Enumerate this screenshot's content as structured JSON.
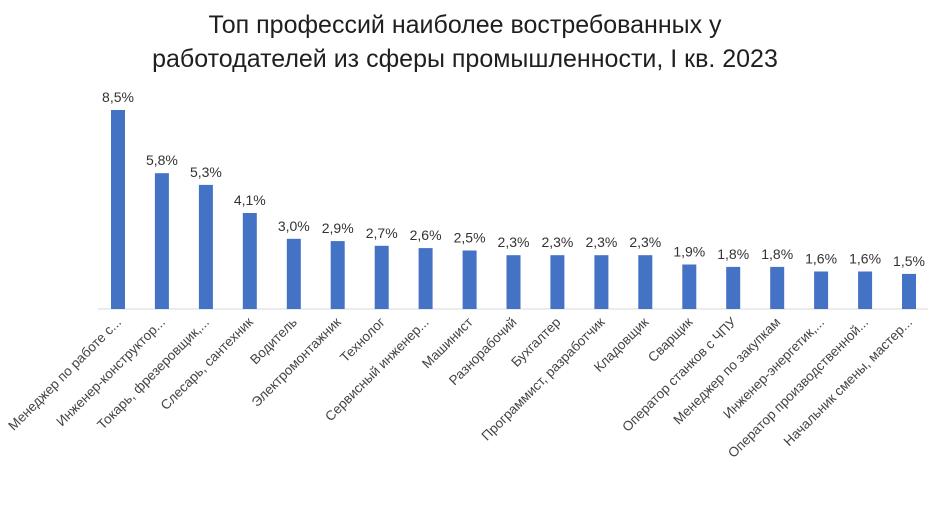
{
  "title_line1": "Топ профессий наиболее востребованных у",
  "title_line2": "работодателей из сферы промышленности, I кв. 2023",
  "chart_data": {
    "type": "bar",
    "title": "Топ профессий наиболее востребованных у работодателей из сферы промышленности, I кв. 2023",
    "xlabel": "",
    "ylabel": "",
    "ylim": [
      0,
      8.5
    ],
    "grid": false,
    "legend": "none",
    "bar_color": "#4472C4",
    "categories": [
      "Менеджер по работе с...",
      "Инженер-конструктор...",
      "Токарь, фрезеровщик,...",
      "Слесарь, сантехник",
      "Водитель",
      "Электромонтажник",
      "Технолог",
      "Сервисный инженер...",
      "Машинист",
      "Разнорабочий",
      "Бухгалтер",
      "Программист, разработчик",
      "Кладовщик",
      "Сварщик",
      "Оператор станков с ЧПУ",
      "Менеджер по закупкам",
      "Инженер-энергетик,...",
      "Оператор производственной...",
      "Начальник смены, мастер..."
    ],
    "values": [
      8.5,
      5.8,
      5.3,
      4.1,
      3.0,
      2.9,
      2.7,
      2.6,
      2.5,
      2.3,
      2.3,
      2.3,
      2.3,
      1.9,
      1.8,
      1.8,
      1.6,
      1.6,
      1.5
    ],
    "labels": [
      "8,5%",
      "5,8%",
      "5,3%",
      "4,1%",
      "3,0%",
      "2,9%",
      "2,7%",
      "2,6%",
      "2,5%",
      "2,3%",
      "2,3%",
      "2,3%",
      "2,3%",
      "1,9%",
      "1,8%",
      "1,8%",
      "1,6%",
      "1,6%",
      "1,5%"
    ]
  }
}
